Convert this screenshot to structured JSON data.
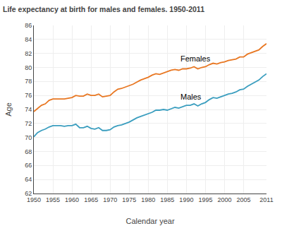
{
  "chart_data": {
    "type": "line",
    "title": "Life expectancy at birth for males and females. 1950-2011",
    "x_label": "Calendar year",
    "y_label": "Age",
    "x": [
      1950,
      1951,
      1952,
      1953,
      1954,
      1955,
      1956,
      1957,
      1958,
      1959,
      1960,
      1961,
      1962,
      1963,
      1964,
      1965,
      1966,
      1967,
      1968,
      1969,
      1970,
      1971,
      1972,
      1973,
      1974,
      1975,
      1976,
      1977,
      1978,
      1979,
      1980,
      1981,
      1982,
      1983,
      1984,
      1985,
      1986,
      1987,
      1988,
      1989,
      1990,
      1991,
      1992,
      1993,
      1994,
      1995,
      1996,
      1997,
      1998,
      1999,
      2000,
      2001,
      2002,
      2003,
      2004,
      2005,
      2006,
      2007,
      2008,
      2009,
      2010,
      2011
    ],
    "series": [
      {
        "name": "Females",
        "color": "#E87722",
        "values": [
          73.7,
          74.2,
          74.6,
          74.8,
          75.3,
          75.5,
          75.5,
          75.5,
          75.5,
          75.6,
          75.7,
          76.0,
          75.9,
          75.9,
          76.2,
          76.0,
          76.0,
          76.2,
          75.8,
          75.9,
          76.0,
          76.5,
          76.9,
          77.0,
          77.2,
          77.4,
          77.6,
          77.9,
          78.2,
          78.4,
          78.6,
          78.9,
          79.1,
          79.0,
          79.2,
          79.4,
          79.6,
          79.7,
          79.6,
          79.8,
          79.8,
          79.9,
          80.1,
          79.8,
          80.0,
          80.1,
          80.4,
          80.6,
          80.5,
          80.7,
          80.8,
          81.0,
          81.1,
          81.2,
          81.5,
          81.5,
          81.9,
          82.1,
          82.3,
          82.5,
          83.0,
          83.4
        ]
      },
      {
        "name": "Males",
        "color": "#3B9EBF",
        "values": [
          70.1,
          70.7,
          71.0,
          71.2,
          71.5,
          71.7,
          71.7,
          71.7,
          71.6,
          71.7,
          71.7,
          71.9,
          71.4,
          71.4,
          71.6,
          71.3,
          71.2,
          71.4,
          71.0,
          71.0,
          71.1,
          71.5,
          71.7,
          71.8,
          72.0,
          72.2,
          72.5,
          72.8,
          73.0,
          73.2,
          73.4,
          73.6,
          73.9,
          73.9,
          74.0,
          73.9,
          74.1,
          74.3,
          74.2,
          74.4,
          74.6,
          74.6,
          74.8,
          74.5,
          74.8,
          75.0,
          75.4,
          75.7,
          75.6,
          75.8,
          76.0,
          76.2,
          76.3,
          76.5,
          76.8,
          76.9,
          77.3,
          77.6,
          77.9,
          78.2,
          78.7,
          79.1
        ]
      }
    ],
    "annotations": [
      {
        "text": "Females",
        "x": 1988,
        "y": 81.3
      },
      {
        "text": "Males",
        "x": 1988,
        "y": 75.8
      }
    ],
    "xlim": [
      1950,
      2011
    ],
    "xticks": [
      1950,
      1955,
      1960,
      1965,
      1970,
      1975,
      1980,
      1985,
      1990,
      1995,
      2000,
      2005,
      2011
    ],
    "ylim": [
      62,
      86
    ],
    "yticks": [
      62,
      64,
      66,
      68,
      70,
      72,
      74,
      76,
      78,
      80,
      82,
      84,
      86
    ],
    "grid": true
  }
}
